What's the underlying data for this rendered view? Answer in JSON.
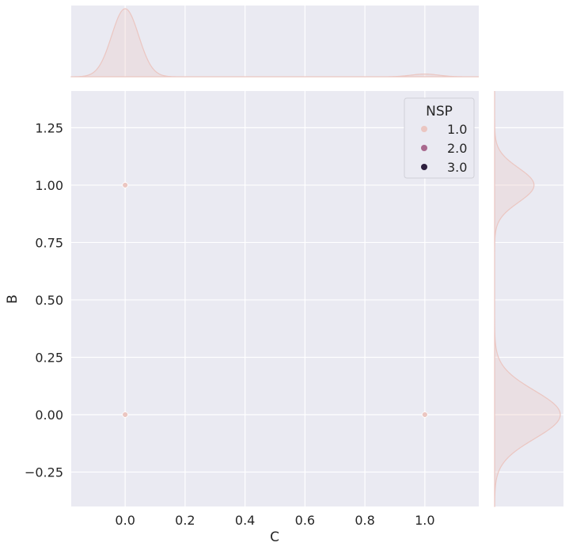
{
  "chart_data": {
    "type": "scatter",
    "kind": "jointplot",
    "xlabel": "C",
    "ylabel": "B",
    "xlim": [
      -0.18,
      1.18
    ],
    "ylim": [
      -0.4,
      1.41
    ],
    "x_ticks": [
      0.0,
      0.2,
      0.4,
      0.6,
      0.8,
      1.0
    ],
    "x_tick_labels": [
      "0.0",
      "0.2",
      "0.4",
      "0.6",
      "0.8",
      "1.0"
    ],
    "y_ticks": [
      -0.25,
      0.0,
      0.25,
      0.5,
      0.75,
      1.0,
      1.25
    ],
    "y_tick_labels": [
      "−0.25",
      "0.00",
      "0.25",
      "0.50",
      "0.75",
      "1.00",
      "1.25"
    ],
    "grid": true,
    "hue": "NSP",
    "legend": {
      "title": "NSP",
      "position": "top-right",
      "entries": [
        {
          "label": "1.0",
          "color": "#ebc6c1"
        },
        {
          "label": "2.0",
          "color": "#a9698e"
        },
        {
          "label": "3.0",
          "color": "#2d1e3e"
        }
      ]
    },
    "points": [
      {
        "x": 0.0,
        "y": 1.0,
        "hue": "1.0"
      },
      {
        "x": 0.0,
        "y": 0.0,
        "hue": "1.0"
      },
      {
        "x": 1.0,
        "y": 0.0,
        "hue": "1.0"
      }
    ],
    "marginal_x": {
      "type": "kde",
      "peaks": [
        {
          "center": 0.0,
          "sd": 0.045,
          "weight": 1.0
        },
        {
          "center": 1.0,
          "sd": 0.045,
          "weight": 0.04
        }
      ]
    },
    "marginal_y": {
      "type": "kde",
      "peaks": [
        {
          "center": 0.0,
          "sd": 0.105,
          "weight": 1.0
        },
        {
          "center": 1.0,
          "sd": 0.075,
          "weight": 0.6
        }
      ]
    },
    "colors": {
      "background": "#eaeaf2",
      "grid": "#ffffff",
      "kde_line": "#ebc6c1",
      "kde_fill": "#ebc6c1"
    }
  }
}
